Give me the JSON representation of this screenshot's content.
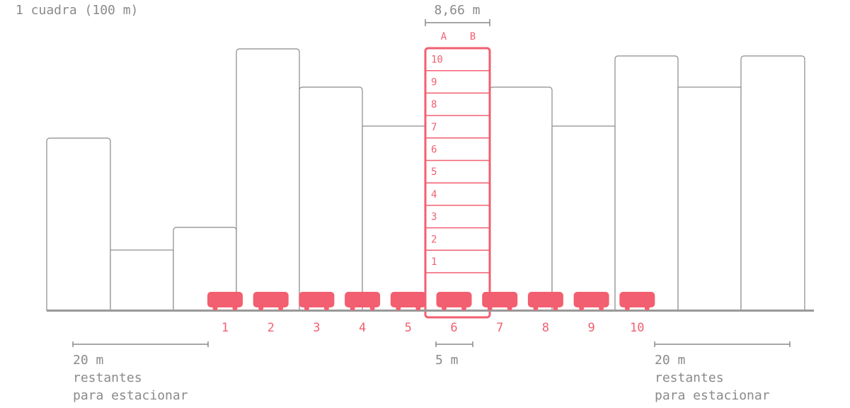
{
  "title": "1 cuadra (100 m)",
  "tower": {
    "width_label": "8,66 m",
    "columns": [
      "A",
      "B"
    ],
    "floors": [
      1,
      2,
      3,
      4,
      5,
      6,
      7,
      8,
      9,
      10
    ]
  },
  "cars": [
    1,
    2,
    3,
    4,
    5,
    6,
    7,
    8,
    9,
    10
  ],
  "car_length_label": "5 m",
  "remaining": {
    "left": {
      "distance": "20 m",
      "lines": [
        "restantes",
        "para estacionar"
      ]
    },
    "right": {
      "distance": "20 m",
      "lines": [
        "restantes",
        "para estacionar"
      ]
    }
  }
}
